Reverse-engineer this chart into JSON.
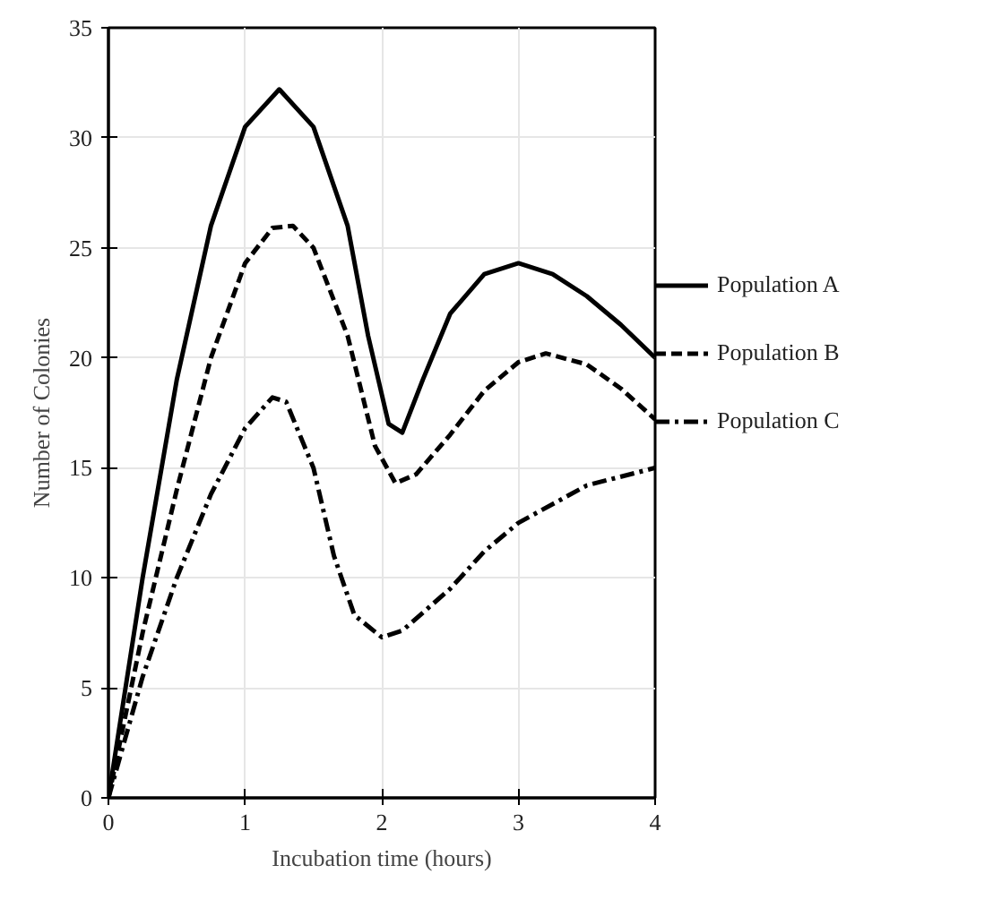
{
  "chart_data": {
    "type": "line",
    "xlabel": "Incubation time (hours)",
    "ylabel": "Number of Colonies",
    "xlim": [
      0,
      4
    ],
    "ylim": [
      0,
      35
    ],
    "xticks": [
      0,
      1,
      2,
      3,
      4
    ],
    "yticks": [
      0,
      5,
      10,
      15,
      20,
      25,
      30,
      35
    ],
    "grid": true,
    "legend": "right",
    "marker": "none",
    "series": [
      {
        "name": "Population A",
        "color": "#000000",
        "line_style": "solid",
        "x": [
          0,
          0.25,
          0.5,
          0.75,
          1,
          1.25,
          1.5,
          1.75,
          1.9,
          2.05,
          2.15,
          2.3,
          2.5,
          2.75,
          3,
          3.25,
          3.5,
          3.75,
          4
        ],
        "values": [
          0,
          10,
          19,
          26,
          30.5,
          32.2,
          30.5,
          26,
          21,
          17,
          16.6,
          19,
          22,
          23.8,
          24.3,
          23.8,
          22.8,
          21.5,
          20
        ]
      },
      {
        "name": "Population B",
        "color": "#000000",
        "line_style": "dashed",
        "x": [
          0,
          0.25,
          0.5,
          0.75,
          1,
          1.2,
          1.35,
          1.5,
          1.75,
          1.95,
          2.1,
          2.25,
          2.5,
          2.75,
          3,
          3.2,
          3.5,
          3.75,
          4
        ],
        "values": [
          0,
          7.5,
          14,
          20,
          24.3,
          25.9,
          26,
          25,
          21,
          16,
          14.3,
          14.7,
          16.5,
          18.5,
          19.8,
          20.2,
          19.7,
          18.6,
          17.2
        ]
      },
      {
        "name": "Population C",
        "color": "#000000",
        "line_style": "dashdot",
        "x": [
          0,
          0.25,
          0.5,
          0.75,
          1,
          1.2,
          1.3,
          1.5,
          1.65,
          1.8,
          2,
          2.15,
          2.5,
          2.75,
          3,
          3.5,
          4
        ],
        "values": [
          0,
          5.5,
          10,
          13.8,
          16.8,
          18.2,
          18,
          15,
          11,
          8.3,
          7.3,
          7.6,
          9.5,
          11.2,
          12.5,
          14.2,
          15
        ]
      }
    ]
  }
}
